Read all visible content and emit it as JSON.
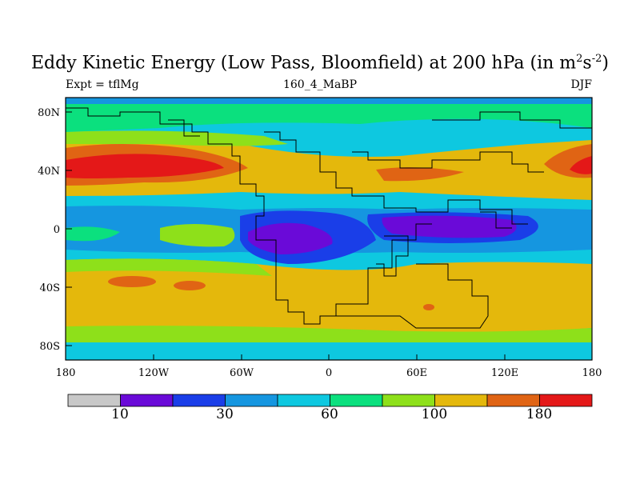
{
  "title": {
    "main": "Eddy Kinetic Energy (Low Pass, Bloomfield) at 200 hPa (in m",
    "sup1": "2",
    "mid": "s",
    "sup2": "-2",
    "close": ")"
  },
  "left_label": "Expt = tflMg",
  "center_label": "160_4_MaBP",
  "right_label": "DJF",
  "lat_ticks": [
    "80N",
    "40N",
    "0",
    "40S",
    "80S"
  ],
  "lon_ticks": [
    "180",
    "120W",
    "60W",
    "0",
    "60E",
    "120E",
    "180"
  ],
  "colorbar": {
    "colors": [
      "#c8c8c8",
      "#6a0ad8",
      "#1a3ee8",
      "#1596e0",
      "#0ec8e0",
      "#0be07e",
      "#8ee01a",
      "#e4b80c",
      "#e06414",
      "#e41818"
    ],
    "labels": [
      "10",
      "30",
      "60",
      "100",
      "180"
    ]
  }
}
